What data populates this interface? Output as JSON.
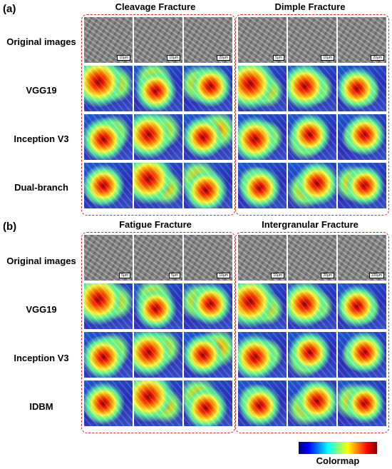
{
  "panels": [
    {
      "label": "(a)",
      "groups": [
        {
          "title": "Cleavage Fracture",
          "scales": [
            "10μm",
            "10μm",
            "20μm"
          ]
        },
        {
          "title": "Dimple Fracture",
          "scales": [
            "5μm",
            "10μm",
            "20μm"
          ]
        }
      ],
      "rows": [
        "Original images",
        "VGG19",
        "Inception V3",
        "Dual-branch"
      ]
    },
    {
      "label": "(b)",
      "groups": [
        {
          "title": "Fatigue Fracture",
          "scales": [
            "5μm",
            "5μm",
            "10μm"
          ]
        },
        {
          "title": "Intergranular Fracture",
          "scales": [
            "10μm",
            "20μm",
            "100μm"
          ]
        }
      ],
      "rows": [
        "Original images",
        "VGG19",
        "Inception V3",
        "IDBM"
      ]
    }
  ],
  "colorbar": {
    "label": "Colormap",
    "colors": [
      "#00007f",
      "#0000ff",
      "#0080ff",
      "#00ffff",
      "#80ff80",
      "#ffff00",
      "#ff8000",
      "#ff0000",
      "#7f0000"
    ]
  }
}
